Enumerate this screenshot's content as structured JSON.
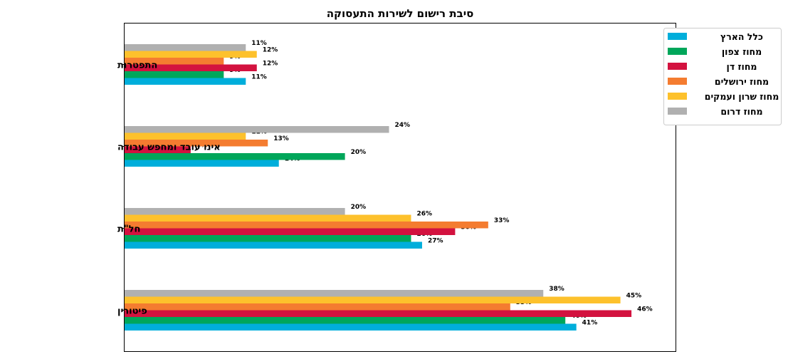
{
  "chart_data": {
    "type": "bar",
    "orientation": "horizontal",
    "title": "סיבת רישום לשירות התעסוקה",
    "xlabel": "",
    "ylabel": "",
    "xlim": [
      0,
      50
    ],
    "grid": false,
    "legend_position": "top-right",
    "categories": [
      "פיטורין",
      "חל\"ת",
      "אינו עובד ומחפש עבודה",
      "התפטרות"
    ],
    "series": [
      {
        "name": "כלל הארץ",
        "color": "#00aedb",
        "values": [
          41,
          27,
          14,
          11
        ],
        "labels": [
          "41%",
          "27%",
          "14%",
          "11%"
        ]
      },
      {
        "name": "מחוז צפון",
        "color": "#00a65a",
        "values": [
          40,
          26,
          20,
          9
        ],
        "labels": [
          "40%",
          "26%",
          "20%",
          "9%"
        ]
      },
      {
        "name": "מחוז דן",
        "color": "#d3123f",
        "values": [
          46,
          30,
          6,
          12
        ],
        "labels": [
          "46%",
          "30%",
          "6%",
          "12%"
        ]
      },
      {
        "name": "מחוז ירושלים",
        "color": "#f47c30",
        "values": [
          35,
          33,
          13,
          9
        ],
        "labels": [
          "35%",
          "33%",
          "13%",
          "9%"
        ]
      },
      {
        "name": "מחוז שרון ועמקים",
        "color": "#fdc12c",
        "values": [
          45,
          26,
          11,
          12
        ],
        "labels": [
          "45%",
          "26%",
          "11%",
          "12%"
        ]
      },
      {
        "name": "מחוז דרום",
        "color": "#b0b0b0",
        "values": [
          38,
          20,
          24,
          11
        ],
        "labels": [
          "38%",
          "20%",
          "24%",
          "11%"
        ]
      }
    ]
  }
}
